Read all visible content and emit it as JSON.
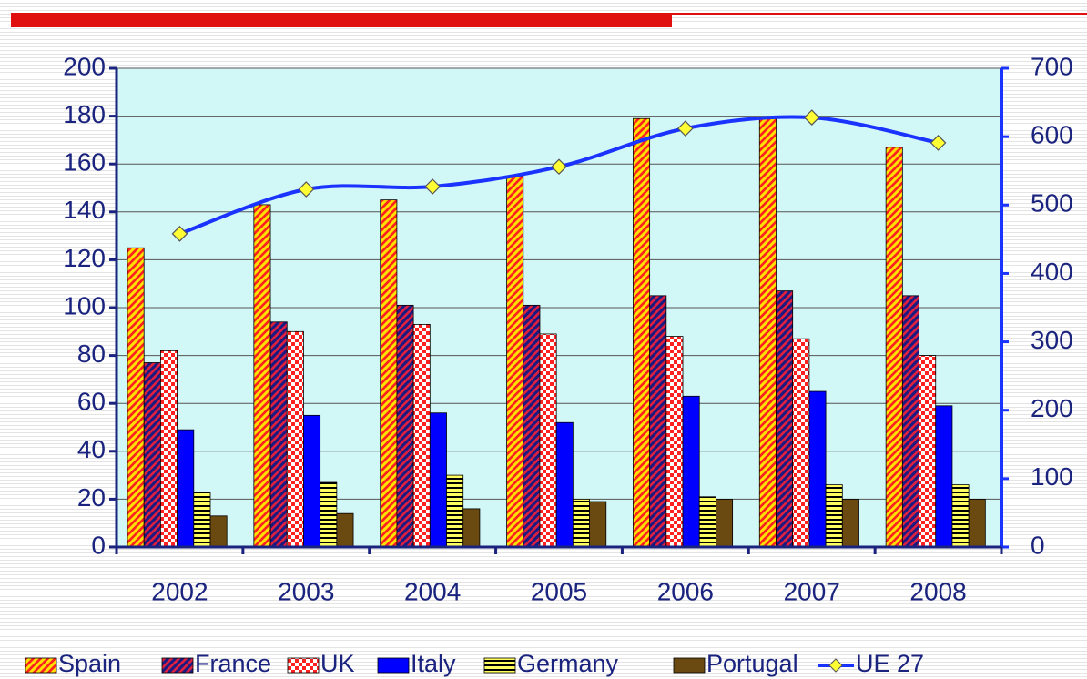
{
  "chart_data": {
    "type": "bar",
    "categories": [
      "2002",
      "2003",
      "2004",
      "2005",
      "2006",
      "2007",
      "2008"
    ],
    "series": [
      {
        "name": "Spain",
        "color": "#ffe000",
        "pattern": "diag",
        "pattern_color": "#ff2020",
        "values": [
          125,
          143,
          145,
          155,
          179,
          179,
          167
        ]
      },
      {
        "name": "France",
        "color": "#1a1a80",
        "pattern": "diag",
        "pattern_color": "#e02040",
        "values": [
          77,
          94,
          101,
          101,
          105,
          107,
          105
        ]
      },
      {
        "name": "UK",
        "color": "#ffffff",
        "pattern": "check",
        "pattern_color": "#ff2020",
        "values": [
          82,
          90,
          93,
          89,
          88,
          87,
          80
        ]
      },
      {
        "name": "Italy",
        "color": "#0000ff",
        "pattern": "solid",
        "values": [
          49,
          55,
          56,
          52,
          63,
          65,
          59
        ]
      },
      {
        "name": "Germany",
        "color": "#ffff60",
        "pattern": "hstripe",
        "pattern_color": "#000000",
        "values": [
          23,
          27,
          30,
          20,
          21,
          26,
          26
        ]
      },
      {
        "name": "Portugal",
        "color": "#6b4a12",
        "pattern": "solid",
        "values": [
          13,
          14,
          16,
          19,
          20,
          20,
          20
        ]
      },
      {
        "name": "UE 27",
        "type": "line",
        "axis": "y2",
        "color": "#1a33ff",
        "marker_color": "#ffff33",
        "values": [
          458,
          523,
          527,
          556,
          612,
          628,
          591
        ]
      }
    ],
    "ylim": [
      0,
      200
    ],
    "yticks": [
      0,
      20,
      40,
      60,
      80,
      100,
      120,
      140,
      160,
      180,
      200
    ],
    "y2lim": [
      0,
      700
    ],
    "y2ticks": [
      0,
      100,
      200,
      300,
      400,
      500,
      600,
      700
    ],
    "grid": true,
    "legend": "bottom"
  }
}
